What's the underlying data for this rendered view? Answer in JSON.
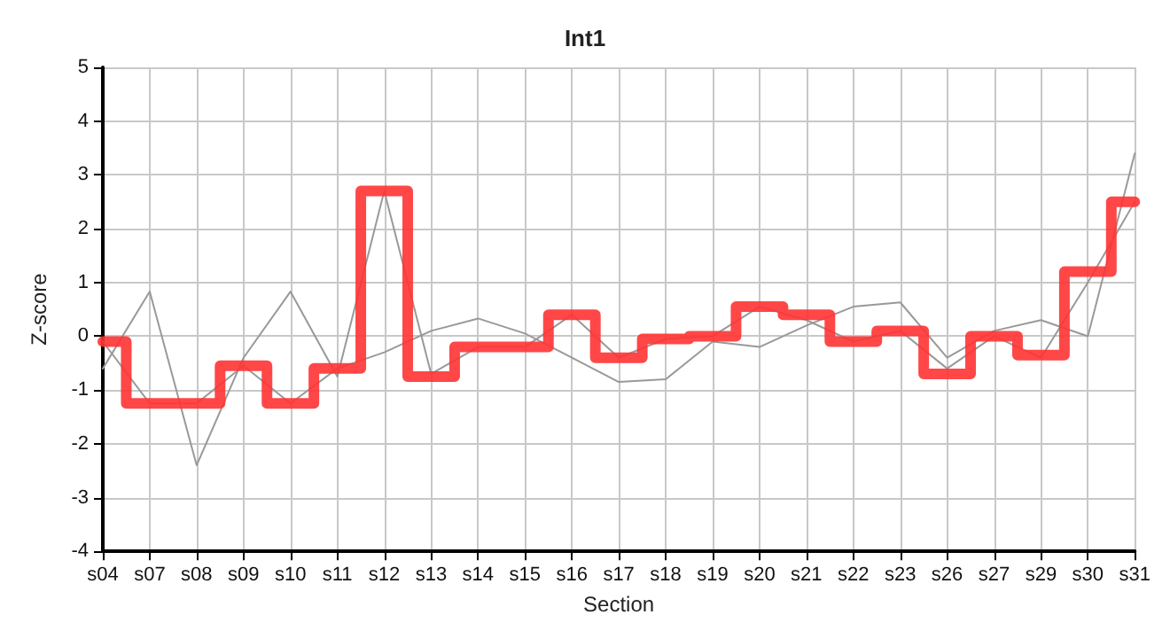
{
  "chart_data": {
    "type": "line",
    "title": "Int1",
    "xlabel": "Section",
    "ylabel": "Z-score",
    "categories": [
      "s04",
      "s07",
      "s08",
      "s09",
      "s10",
      "s11",
      "s12",
      "s13",
      "s14",
      "s15",
      "s16",
      "s17",
      "s18",
      "s19",
      "s20",
      "s21",
      "s22",
      "s23",
      "s26",
      "s27",
      "s29",
      "s30",
      "s31"
    ],
    "series": [
      {
        "color": "#999999",
        "values": [
          -0.6,
          0.83,
          -2.4,
          -0.4,
          0.83,
          -0.75,
          2.7,
          -0.7,
          -0.2,
          -0.2,
          0.4,
          -0.4,
          -0.05,
          0,
          0.55,
          0.3,
          -0.1,
          0.1,
          -0.6,
          0,
          -0.4,
          1.0,
          2.5
        ]
      },
      {
        "color": "#999999",
        "values": [
          -0.1,
          -1.25,
          -1.25,
          -0.55,
          -1.25,
          -0.6,
          -0.3,
          0.1,
          0.33,
          0.05,
          -0.4,
          -0.85,
          -0.8,
          -0.1,
          -0.2,
          0.2,
          0.55,
          0.63,
          -0.4,
          0.1,
          0.3,
          0,
          3.4
        ]
      },
      {
        "type": "step",
        "color": "#ff3333",
        "values": [
          -0.1,
          -1.25,
          -1.25,
          -0.55,
          -1.25,
          -0.6,
          2.7,
          -0.75,
          -0.2,
          -0.2,
          0.4,
          -0.4,
          -0.05,
          0,
          0.55,
          0.4,
          -0.1,
          0.1,
          -0.7,
          0,
          -0.35,
          1.2,
          2.5
        ]
      }
    ],
    "ylim": [
      -4,
      5
    ],
    "yticks": [
      -4,
      -3,
      -2,
      -1,
      0,
      1,
      2,
      3,
      4,
      5
    ],
    "grid": true,
    "marker": "none",
    "line_style": "solid"
  }
}
